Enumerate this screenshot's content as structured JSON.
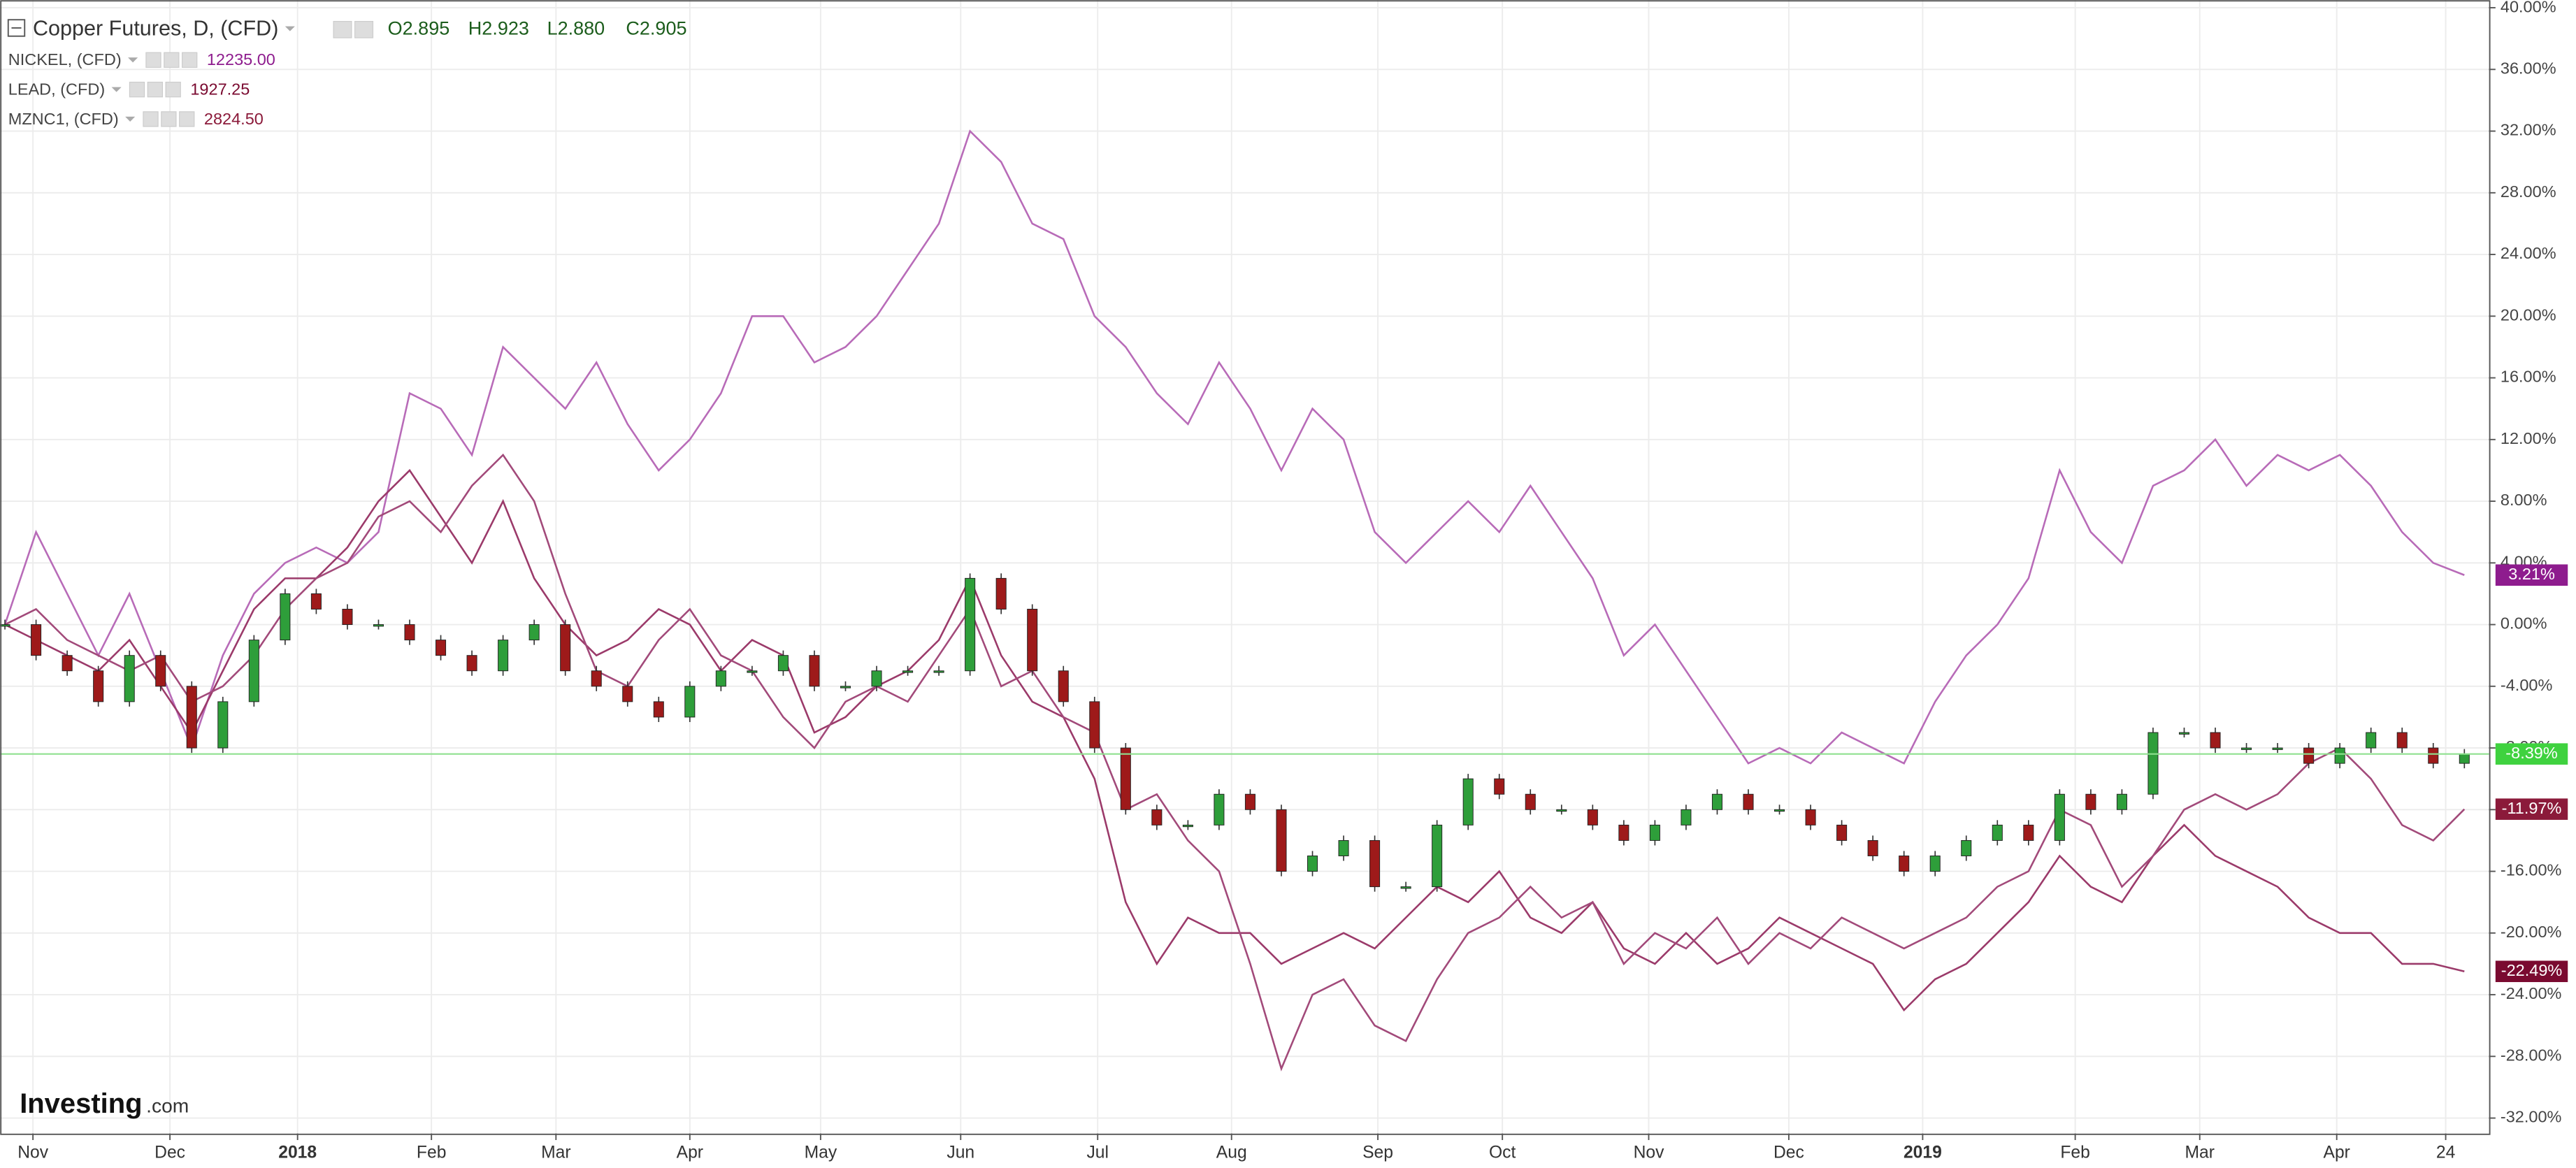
{
  "chart_data": {
    "type": "candlestick-line",
    "title": "Copper Futures, D, (CFD)",
    "ohlc": [
      "O2.895",
      "H2.923",
      "L2.880",
      "C2.905"
    ],
    "logo": [
      "Investing",
      ".com"
    ],
    "xlim": [
      0,
      80
    ],
    "xticks": [
      {
        "value": 0.9,
        "label": "Nov"
      },
      {
        "value": 5.3,
        "label": "Dec"
      },
      {
        "value": 9.4,
        "label": "2018"
      },
      {
        "value": 13.7,
        "label": "Feb"
      },
      {
        "value": 17.7,
        "label": "Mar"
      },
      {
        "value": 22,
        "label": "Apr"
      },
      {
        "value": 26.2,
        "label": "May"
      },
      {
        "value": 30.7,
        "label": "Jun"
      },
      {
        "value": 35.1,
        "label": "Jul"
      },
      {
        "value": 39.4,
        "label": "Aug"
      },
      {
        "value": 44.1,
        "label": "Sep"
      },
      {
        "value": 48.1,
        "label": "Oct"
      },
      {
        "value": 52.8,
        "label": "Nov"
      },
      {
        "value": 57.3,
        "label": "Dec"
      },
      {
        "value": 61.6,
        "label": "2019"
      },
      {
        "value": 66.5,
        "label": "Feb"
      },
      {
        "value": 70.5,
        "label": "Mar"
      },
      {
        "value": 74.9,
        "label": "Apr"
      },
      {
        "value": 78.4,
        "label": "24"
      }
    ],
    "ylim": [
      -33,
      40.5
    ],
    "yticks": [
      {
        "value": 40,
        "label": "40.00%"
      },
      {
        "value": 36,
        "label": "36.00%"
      },
      {
        "value": 32,
        "label": "32.00%"
      },
      {
        "value": 28,
        "label": "28.00%"
      },
      {
        "value": 24,
        "label": "24.00%"
      },
      {
        "value": 20,
        "label": "20.00%"
      },
      {
        "value": 16,
        "label": "16.00%"
      },
      {
        "value": 12,
        "label": "12.00%"
      },
      {
        "value": 8,
        "label": "8.00%"
      },
      {
        "value": 4,
        "label": "4.00%"
      },
      {
        "value": 0,
        "label": "0.00%"
      },
      {
        "value": -4,
        "label": "-4.00%"
      },
      {
        "value": -8,
        "label": "-8.00%"
      },
      {
        "value": -12,
        "label": "-12.00%"
      },
      {
        "value": -16,
        "label": "-16.00%"
      },
      {
        "value": -20,
        "label": "-20.00%"
      },
      {
        "value": -24,
        "label": "-24.00%"
      },
      {
        "value": -28,
        "label": "-28.00%"
      },
      {
        "value": -32,
        "label": "-32.00%"
      }
    ],
    "grid": true,
    "series": [
      {
        "name": "Copper Futures, D, (CFD)",
        "style": "candle",
        "color": "#2e9e3a",
        "down_color": "#9e1a1a",
        "tag_color": "#3fd23f",
        "value_labels": [
          "-8.39%"
        ],
        "values": [
          0,
          -2,
          -3,
          -5,
          -2,
          -4,
          -8,
          -5,
          -1,
          2,
          1,
          0,
          0,
          -1,
          -2,
          -3,
          -1,
          0,
          -3,
          -4,
          -5,
          -6,
          -4,
          -3,
          -3,
          -2,
          -4,
          -4,
          -3,
          -3,
          -3,
          3,
          1,
          -3,
          -5,
          -8,
          -12,
          -13,
          -13,
          -11,
          -12,
          -16,
          -15,
          -14,
          -17,
          -17,
          -13,
          -10,
          -11,
          -12,
          -12,
          -13,
          -14,
          -13,
          -12,
          -11,
          -12,
          -12,
          -13,
          -14,
          -15,
          -16,
          -15,
          -14,
          -13,
          -14,
          -11,
          -12,
          -11,
          -7,
          -7,
          -8,
          -8,
          -8,
          -9,
          -8,
          -7,
          -8,
          -9,
          -8.39
        ]
      },
      {
        "name": "NICKEL, (CFD)",
        "last": "12235.00",
        "style": "line",
        "color": "#b86bb8",
        "tag_color": "#8e1c8e",
        "value_labels": [
          "3.21%"
        ],
        "values": [
          0,
          6,
          2,
          -2,
          2,
          -3,
          -8,
          -2,
          2,
          4,
          5,
          4,
          6,
          15,
          14,
          11,
          18,
          16,
          14,
          17,
          13,
          10,
          12,
          15,
          20,
          20,
          17,
          18,
          20,
          23,
          26,
          32,
          30,
          26,
          25,
          20,
          18,
          15,
          13,
          17,
          14,
          10,
          14,
          12,
          6,
          4,
          6,
          8,
          6,
          9,
          6,
          3,
          -2,
          0,
          -3,
          -6,
          -9,
          -8,
          -9,
          -7,
          -8,
          -9,
          -5,
          -2,
          0,
          3,
          10,
          6,
          4,
          9,
          10,
          12,
          9,
          11,
          10,
          11,
          9,
          6,
          4,
          3.21
        ]
      },
      {
        "name": "LEAD, (CFD)",
        "last": "1927.25",
        "style": "line",
        "color": "#9b3a6a",
        "tag_color": "#7a0a30",
        "value_labels": [
          "-22.49%"
        ],
        "values": [
          0,
          -1,
          -2,
          -3,
          -1,
          -4,
          -7,
          -3,
          1,
          3,
          3,
          5,
          8,
          10,
          7,
          4,
          8,
          3,
          0,
          -2,
          -1,
          1,
          0,
          -3,
          -1,
          -2,
          -7,
          -6,
          -4,
          -3,
          -1,
          3,
          -2,
          -5,
          -6,
          -10,
          -18,
          -22,
          -19,
          -20,
          -20,
          -22,
          -21,
          -20,
          -21,
          -19,
          -17,
          -18,
          -16,
          -19,
          -20,
          -18,
          -21,
          -22,
          -20,
          -22,
          -21,
          -19,
          -20,
          -21,
          -22,
          -25,
          -23,
          -22,
          -20,
          -18,
          -15,
          -17,
          -18,
          -15,
          -13,
          -15,
          -16,
          -17,
          -19,
          -20,
          -20,
          -22,
          -22,
          -22.49
        ]
      },
      {
        "name": "MZNC1, (CFD)",
        "last": "2824.50",
        "style": "line",
        "color": "#a24a7a",
        "tag_color": "#8b1a3a",
        "value_labels": [
          "-11.97%"
        ],
        "values": [
          0,
          1,
          -1,
          -2,
          -3,
          -2,
          -5,
          -4,
          -2,
          1,
          3,
          4,
          7,
          8,
          6,
          9,
          11,
          8,
          2,
          -3,
          -4,
          -1,
          1,
          -2,
          -3,
          -6,
          -8,
          -5,
          -4,
          -5,
          -2,
          1,
          -4,
          -3,
          -6,
          -7,
          -12,
          -11,
          -14,
          -16,
          -22,
          -28.8,
          -24,
          -23,
          -26,
          -27,
          -23,
          -20,
          -19,
          -17,
          -19,
          -18,
          -22,
          -20,
          -21,
          -19,
          -22,
          -20,
          -21,
          -19,
          -20,
          -21,
          -20,
          -19,
          -17,
          -16,
          -12,
          -13,
          -17,
          -15,
          -12,
          -11,
          -12,
          -11,
          -9,
          -8,
          -10,
          -13,
          -14,
          -11.97
        ]
      }
    ]
  }
}
